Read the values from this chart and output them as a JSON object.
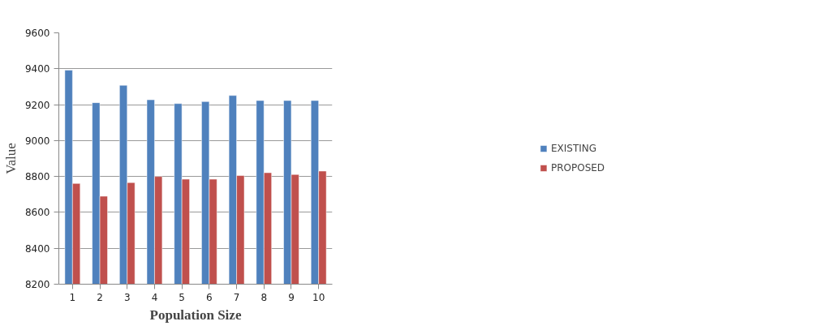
{
  "chart_data": {
    "type": "bar",
    "xlabel": "Population Size",
    "ylabel": "Value",
    "categories": [
      "1",
      "2",
      "3",
      "4",
      "5",
      "6",
      "7",
      "8",
      "9",
      "10"
    ],
    "series": [
      {
        "name": "EXISTING",
        "color": "#4f81bd",
        "values": [
          9392,
          9211,
          9308,
          9227,
          9206,
          9217,
          9251,
          9223,
          9223,
          9223
        ]
      },
      {
        "name": "PROPOSED",
        "color": "#c0504d",
        "values": [
          8761,
          8690,
          8766,
          8800,
          8785,
          8785,
          8805,
          8821,
          8811,
          8830
        ]
      }
    ],
    "ylim": [
      8200,
      9600
    ],
    "yticks": [
      8200,
      8400,
      8600,
      8800,
      9000,
      9200,
      9400,
      9600
    ],
    "grid": "y",
    "legend": "right"
  }
}
